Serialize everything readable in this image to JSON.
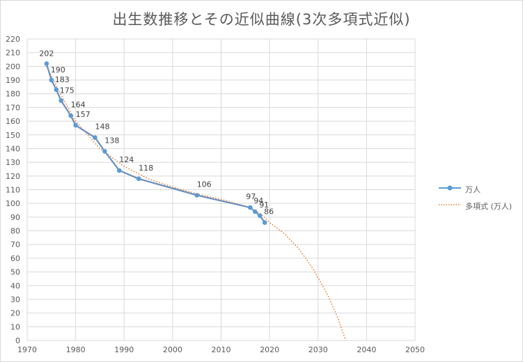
{
  "colors": {
    "actual": "#5b9bd5",
    "actual_line": "#6a8fbf",
    "trend": "#ed7d31",
    "grid": "#d9d9d9"
  },
  "chart_data": {
    "type": "line",
    "title": "出生数推移とその近似曲線(3次多項式近似)",
    "xlim": [
      1970,
      2050
    ],
    "ylim": [
      0,
      220
    ],
    "x_ticks": [
      "1970",
      "1980",
      "1990",
      "2000",
      "2010",
      "2020",
      "2030",
      "2040",
      "2050"
    ],
    "y_ticks": [
      "0",
      "10",
      "20",
      "30",
      "40",
      "50",
      "60",
      "70",
      "80",
      "90",
      "100",
      "110",
      "120",
      "130",
      "140",
      "150",
      "160",
      "170",
      "180",
      "190",
      "200",
      "210",
      "220"
    ],
    "grid": true,
    "legend_position": "right",
    "series": [
      {
        "name": "万人",
        "style": "solid-line-markers",
        "x": [
          1974,
          1975,
          1976,
          1977,
          1979,
          1980,
          1984,
          1986,
          1989,
          1993,
          2005,
          2016,
          2017,
          2018,
          2019
        ],
        "values": [
          202,
          190,
          183,
          175,
          164,
          157,
          148,
          138,
          124,
          118,
          106,
          97,
          94,
          91,
          86
        ],
        "labels": [
          "202",
          "190",
          "183",
          "175",
          "164",
          "157",
          "148",
          "138",
          "124",
          "118",
          "106",
          "97",
          "94",
          "91",
          "86"
        ]
      },
      {
        "name": "多項式 (万人)",
        "style": "dotted-trendline",
        "x": [
          1974,
          1977,
          1980,
          1985,
          1990,
          1995,
          2000,
          2005,
          2010,
          2015,
          2018,
          2020,
          2023,
          2026,
          2029,
          2032,
          2034,
          2035.7
        ],
        "values": [
          200,
          179,
          160,
          140,
          127,
          118,
          112,
          107,
          103,
          98,
          93,
          86,
          78,
          67,
          52,
          33,
          17,
          0
        ]
      }
    ]
  }
}
